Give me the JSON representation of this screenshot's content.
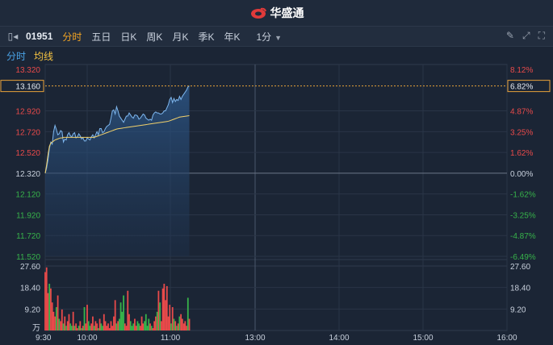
{
  "header": {
    "brand": "华盛通"
  },
  "toolbar": {
    "code": "01951",
    "tabs": [
      "分时",
      "五日",
      "日K",
      "周K",
      "月K",
      "季K",
      "年K"
    ],
    "active_tab": "分时",
    "interval": "1分",
    "icons": [
      "pencil-icon",
      "expand-icon",
      "fullscreen-icon"
    ]
  },
  "subbar": {
    "line_label": "分时",
    "avg_label": "均线"
  },
  "colors": {
    "up": "#e84a4a",
    "down": "#37b34a",
    "price": "#7fb8f0",
    "avg": "#f2d16b",
    "accent": "#f5a623"
  },
  "chart_data": {
    "type": "line",
    "price_ticks": [
      "13.320",
      "12.920",
      "12.720",
      "12.520",
      "12.320",
      "12.120",
      "11.920",
      "11.720",
      "11.520"
    ],
    "pct_ticks": [
      "8.12%",
      "4.87%",
      "3.25%",
      "1.62%",
      "0.00%",
      "-1.62%",
      "-3.25%",
      "-4.87%",
      "-6.49%"
    ],
    "prev_close": 12.32,
    "current_price": "13.160",
    "current_pct": "6.82%",
    "volume_ticks": [
      "27.60",
      "18.40",
      "9.20",
      "万"
    ],
    "time_ticks": [
      "9:30",
      "10:00",
      "11:00",
      "13:00",
      "14:00",
      "15:00",
      "16:00"
    ],
    "ylim": [
      11.52,
      13.32
    ],
    "price": [
      12.32,
      12.37,
      12.45,
      12.56,
      12.62,
      12.6,
      12.72,
      12.78,
      12.74,
      12.69,
      12.7,
      12.73,
      12.72,
      12.62,
      12.65,
      12.64,
      12.69,
      12.71,
      12.68,
      12.67,
      12.7,
      12.71,
      12.66,
      12.67,
      12.7,
      12.68,
      12.65,
      12.66,
      12.63,
      12.63,
      12.66,
      12.65,
      12.64,
      12.67,
      12.69,
      12.66,
      12.69,
      12.72,
      12.69,
      12.75,
      12.75,
      12.71,
      12.72,
      12.75,
      12.77,
      12.78,
      12.79,
      12.85,
      12.92,
      12.93,
      12.89,
      12.96,
      12.92,
      12.87,
      12.85,
      12.83,
      12.81,
      12.84,
      12.87,
      12.87,
      12.9,
      12.88,
      12.86,
      12.85,
      12.88,
      12.88,
      12.87,
      12.84,
      12.85,
      12.87,
      12.89,
      12.88,
      12.85,
      12.84,
      12.83,
      12.84,
      12.83,
      12.88,
      12.9,
      12.91,
      12.9,
      12.9,
      12.89,
      12.89,
      12.9,
      12.92,
      12.92,
      12.95,
      12.98,
      13.03,
      13.05,
      13.0,
      13.04,
      13.01,
      13.03,
      13.02,
      13.06,
      13.03,
      13.06,
      13.08,
      13.1,
      13.12,
      13.15,
      13.16
    ],
    "avg": [
      12.32,
      12.4,
      12.5,
      12.58,
      12.61,
      12.62,
      12.63,
      12.64,
      12.645,
      12.65,
      12.655,
      12.66,
      12.66,
      12.665,
      12.665,
      12.665,
      12.665,
      12.665,
      12.665,
      12.665,
      12.665,
      12.665,
      12.665,
      12.665,
      12.665,
      12.665,
      12.665,
      12.665,
      12.665,
      12.665,
      12.665,
      12.665,
      12.665,
      12.665,
      12.665,
      12.665,
      12.67,
      12.675,
      12.68,
      12.685,
      12.69,
      12.695,
      12.7,
      12.705,
      12.71,
      12.715,
      12.72,
      12.725,
      12.73,
      12.735,
      12.74,
      12.745,
      12.748,
      12.75,
      12.752,
      12.754,
      12.756,
      12.758,
      12.76,
      12.762,
      12.764,
      12.766,
      12.768,
      12.77,
      12.772,
      12.774,
      12.776,
      12.778,
      12.78,
      12.782,
      12.784,
      12.786,
      12.788,
      12.79,
      12.792,
      12.794,
      12.796,
      12.798,
      12.8,
      12.802,
      12.804,
      12.806,
      12.808,
      12.81,
      12.812,
      12.814,
      12.816,
      12.818,
      12.82,
      12.825,
      12.83,
      12.835,
      12.84,
      12.845,
      12.85,
      12.855,
      12.86,
      12.862,
      12.864,
      12.866,
      12.868,
      12.87,
      12.872,
      12.874
    ],
    "volume": [
      25,
      27,
      16,
      20,
      18,
      12,
      8,
      6,
      10,
      15,
      5,
      4,
      9,
      3,
      6,
      2,
      4,
      7,
      3,
      2,
      8,
      2,
      3,
      1,
      2,
      4,
      1,
      2,
      10,
      3,
      11,
      4,
      2,
      3,
      6,
      2,
      4,
      3,
      1,
      5,
      3,
      2,
      7,
      4,
      2,
      3,
      1,
      4,
      2,
      6,
      13,
      3,
      4,
      5,
      12,
      8,
      15,
      3,
      2,
      17,
      7,
      4,
      2,
      3,
      5,
      2,
      4,
      3,
      2,
      6,
      3,
      4,
      7,
      2,
      5,
      3,
      2,
      1,
      4,
      6,
      8,
      17,
      12,
      4,
      18,
      20,
      13,
      19,
      6,
      11,
      3,
      10,
      5,
      4,
      2,
      3,
      6,
      7,
      5,
      3,
      4,
      2,
      14,
      5
    ],
    "volume_dir": [
      "u",
      "u",
      "u",
      "d",
      "u",
      "u",
      "u",
      "u",
      "d",
      "u",
      "d",
      "u",
      "u",
      "d",
      "u",
      "d",
      "u",
      "u",
      "d",
      "d",
      "u",
      "d",
      "u",
      "u",
      "d",
      "u",
      "d",
      "u",
      "d",
      "u",
      "u",
      "d",
      "d",
      "u",
      "u",
      "d",
      "u",
      "u",
      "d",
      "u",
      "d",
      "d",
      "u",
      "u",
      "u",
      "u",
      "u",
      "u",
      "u",
      "u",
      "u",
      "d",
      "u",
      "d",
      "d",
      "d",
      "d",
      "u",
      "u",
      "u",
      "u",
      "d",
      "d",
      "d",
      "u",
      "u",
      "d",
      "d",
      "u",
      "u",
      "u",
      "d",
      "d",
      "d",
      "d",
      "u",
      "d",
      "u",
      "u",
      "u",
      "d",
      "u",
      "d",
      "u",
      "u",
      "u",
      "u",
      "u",
      "u",
      "u",
      "d",
      "u",
      "d",
      "u",
      "d",
      "u",
      "d",
      "u",
      "u",
      "u",
      "u",
      "u",
      "d",
      "u"
    ]
  }
}
